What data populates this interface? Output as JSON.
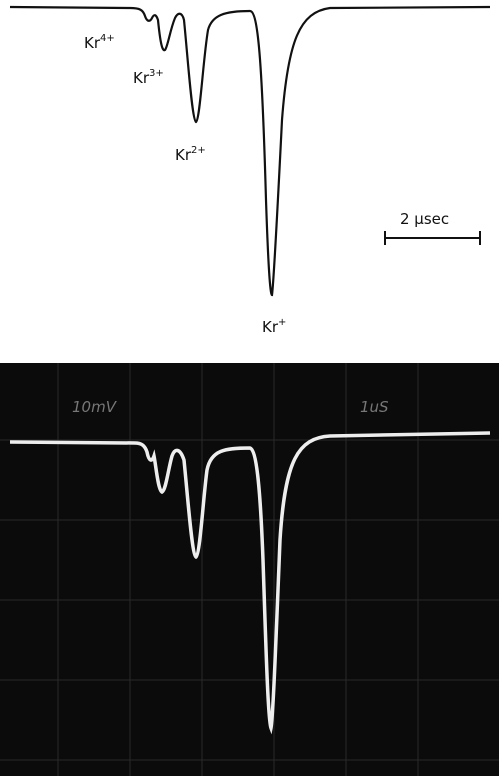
{
  "top_trace": {
    "peaks": [
      {
        "base": "Kr",
        "charge": "4+"
      },
      {
        "base": "Kr",
        "charge": "3+"
      },
      {
        "base": "Kr",
        "charge": "2+"
      },
      {
        "base": "Kr",
        "charge": "+"
      }
    ],
    "scale_bar": "2 μsec"
  },
  "oscilloscope": {
    "vertical_label": "10mV",
    "time_label": "1uS"
  }
}
